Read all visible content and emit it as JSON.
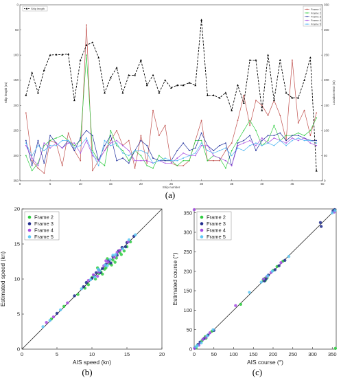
{
  "colors": {
    "ship_length": "#000000",
    "frame1": "#c0504d",
    "frame2": "#2ecc40",
    "frame3": "#1f2e9c",
    "frame4": "#a64ce0",
    "frame5": "#4fb6f2",
    "frame2_dots": "#2ecc40",
    "frame3_dots": "#1e2a8c",
    "frame4_dots": "#a64ce0",
    "frame5_dots": "#5fc8f5"
  },
  "panel_labels": [
    "(a)",
    "(b)",
    "(c)"
  ],
  "chart_data": [
    {
      "type": "line",
      "xlabel": "Ship number",
      "ylabel": "Ship length (m)",
      "ylabel_right": "Location error (m)",
      "xlim": [
        0,
        50
      ],
      "ylim_left": [
        350,
        0
      ],
      "ylim_right": [
        0,
        350
      ],
      "xticks": [
        "0",
        "5",
        "10",
        "15",
        "20",
        "25",
        "30",
        "35",
        "40",
        "45",
        "50"
      ],
      "yticks_left": [
        "0",
        "50",
        "100",
        "150",
        "200",
        "250",
        "300",
        "350"
      ],
      "yticks_right": [
        "0",
        "50",
        "100",
        "150",
        "200",
        "250",
        "300",
        "350"
      ],
      "legend_left": "Ship length",
      "legend_right": [
        "Frame 1",
        "Frame 2",
        "Frame 3",
        "Frame 4",
        "Frame 5"
      ],
      "x": [
        1,
        2,
        3,
        4,
        5,
        6,
        7,
        8,
        9,
        10,
        11,
        12,
        13,
        14,
        15,
        16,
        17,
        18,
        19,
        20,
        21,
        22,
        23,
        24,
        25,
        26,
        27,
        28,
        29,
        30,
        31,
        32,
        33,
        34,
        35,
        36,
        37,
        38,
        39,
        40,
        41,
        42,
        43,
        44,
        45,
        46,
        47,
        48,
        49
      ],
      "series": [
        {
          "name": "Ship length",
          "axis": "left",
          "values": [
            180,
            135,
            175,
            130,
            100,
            99,
            99,
            98,
            190,
            110,
            80,
            75,
            105,
            175,
            145,
            125,
            175,
            140,
            140,
            110,
            160,
            140,
            175,
            150,
            165,
            160,
            160,
            155,
            160,
            30,
            180,
            180,
            185,
            175,
            210,
            160,
            195,
            110,
            110,
            210,
            100,
            190,
            110,
            175,
            185,
            185,
            150,
            105,
            330
          ]
        },
        {
          "name": "Frame 1",
          "axis": "right",
          "values": [
            135,
            40,
            25,
            15,
            80,
            75,
            30,
            95,
            60,
            40,
            310,
            20,
            40,
            60,
            80,
            100,
            70,
            80,
            25,
            90,
            35,
            140,
            90,
            110,
            35,
            30,
            30,
            40,
            80,
            120,
            40,
            40,
            40,
            60,
            75,
            120,
            170,
            110,
            160,
            150,
            130,
            160,
            130,
            80,
            240,
            115,
            140,
            90,
            135
          ]
        },
        {
          "name": "Frame 2",
          "axis": "right",
          "values": [
            50,
            20,
            35,
            70,
            80,
            85,
            90,
            80,
            70,
            80,
            250,
            60,
            40,
            30,
            100,
            70,
            60,
            40,
            60,
            50,
            30,
            25,
            50,
            40,
            40,
            30,
            40,
            40,
            80,
            80,
            40,
            50,
            45,
            25,
            60,
            80,
            100,
            120,
            100,
            70,
            80,
            110,
            80,
            90,
            90,
            95,
            90,
            100,
            125
          ]
        },
        {
          "name": "Frame 3",
          "axis": "right",
          "values": [
            80,
            30,
            80,
            35,
            90,
            75,
            65,
            80,
            60,
            85,
            100,
            90,
            40,
            70,
            90,
            40,
            45,
            35,
            60,
            80,
            70,
            45,
            40,
            40,
            40,
            60,
            75,
            60,
            65,
            95,
            70,
            60,
            70,
            75,
            30,
            75,
            80,
            90,
            60,
            80,
            90,
            90,
            95,
            80,
            90,
            90,
            85,
            80,
            80
          ]
        },
        {
          "name": "Frame 4",
          "axis": "right",
          "values": [
            70,
            45,
            30,
            75,
            65,
            75,
            65,
            75,
            75,
            55,
            80,
            50,
            40,
            60,
            75,
            80,
            70,
            60,
            40,
            40,
            40,
            35,
            40,
            35,
            35,
            45,
            55,
            50,
            50,
            70,
            70,
            50,
            45,
            40,
            30,
            70,
            75,
            80,
            70,
            85,
            75,
            85,
            80,
            75,
            85,
            80,
            85,
            75,
            70
          ]
        },
        {
          "name": "Frame 5",
          "axis": "right",
          "values": [
            75,
            50,
            70,
            60,
            70,
            70,
            80,
            80,
            65,
            70,
            85,
            55,
            30,
            80,
            70,
            75,
            55,
            50,
            60,
            60,
            55,
            35,
            40,
            45,
            40,
            40,
            45,
            50,
            55,
            75,
            60,
            55,
            60,
            65,
            50,
            65,
            60,
            70,
            75,
            70,
            75,
            70,
            80,
            70,
            80,
            85,
            80,
            80,
            75
          ]
        }
      ]
    },
    {
      "type": "scatter",
      "xlabel": "AIS speed (kn)",
      "ylabel": "Estimated speed (kn)",
      "xlim": [
        0,
        20
      ],
      "ylim": [
        0,
        20
      ],
      "xticks": [
        "0",
        "5",
        "10",
        "15",
        "20"
      ],
      "yticks": [
        "0",
        "5",
        "10",
        "15",
        "20"
      ],
      "legend": [
        "Frame 2",
        "Frame 3",
        "Frame 4",
        "Frame 5"
      ],
      "legend_position": "top-left",
      "reference_line": "y = x",
      "series": [
        {
          "name": "Frame 2",
          "points": [
            [
              4.2,
              4.3
            ],
            [
              6.0,
              6.1
            ],
            [
              8.0,
              7.8
            ],
            [
              9.0,
              8.7
            ],
            [
              10.0,
              10.2
            ],
            [
              10.5,
              10.0
            ],
            [
              11.0,
              10.8
            ],
            [
              11.3,
              11.0
            ],
            [
              11.8,
              11.4
            ],
            [
              12.0,
              11.6
            ],
            [
              12.5,
              12.2
            ],
            [
              12.8,
              12.0
            ],
            [
              13.0,
              12.7
            ],
            [
              13.5,
              13.0
            ],
            [
              14.0,
              13.8
            ],
            [
              14.2,
              13.5
            ],
            [
              15.0,
              14.6
            ],
            [
              15.5,
              15.3
            ],
            [
              10.8,
              11.6
            ],
            [
              12.2,
              12.9
            ],
            [
              13.3,
              12.4
            ],
            [
              9.5,
              9.2
            ],
            [
              11.5,
              10.7
            ],
            [
              14.6,
              14.0
            ]
          ]
        },
        {
          "name": "Frame 3",
          "points": [
            [
              5.0,
              5.1
            ],
            [
              7.5,
              7.6
            ],
            [
              8.8,
              8.9
            ],
            [
              10.0,
              10.1
            ],
            [
              10.6,
              10.9
            ],
            [
              11.0,
              11.3
            ],
            [
              11.5,
              11.5
            ],
            [
              12.0,
              12.1
            ],
            [
              12.4,
              12.6
            ],
            [
              13.0,
              13.2
            ],
            [
              13.6,
              13.4
            ],
            [
              14.3,
              14.5
            ],
            [
              15.0,
              15.2
            ],
            [
              16.0,
              16.1
            ],
            [
              11.2,
              10.9
            ],
            [
              12.7,
              12.3
            ],
            [
              9.2,
              9.5
            ],
            [
              10.3,
              10.5
            ],
            [
              13.8,
              14.0
            ],
            [
              14.8,
              14.6
            ]
          ]
        },
        {
          "name": "Frame 4",
          "points": [
            [
              3.5,
              3.8
            ],
            [
              4.5,
              4.6
            ],
            [
              6.5,
              6.6
            ],
            [
              9.5,
              9.8
            ],
            [
              10.2,
              10.6
            ],
            [
              11.0,
              11.0
            ],
            [
              11.7,
              11.9
            ],
            [
              12.3,
              12.4
            ],
            [
              13.2,
              13.1
            ],
            [
              14.0,
              14.1
            ],
            [
              15.2,
              15.3
            ],
            [
              10.8,
              10.4
            ],
            [
              12.0,
              12.6
            ],
            [
              13.6,
              13.8
            ]
          ]
        },
        {
          "name": "Frame 5",
          "points": [
            [
              3.0,
              3.2
            ],
            [
              4.0,
              4.1
            ],
            [
              5.5,
              5.6
            ],
            [
              8.5,
              8.6
            ],
            [
              9.8,
              9.9
            ],
            [
              10.4,
              10.3
            ],
            [
              11.1,
              11.2
            ],
            [
              11.9,
              12.0
            ],
            [
              12.6,
              12.8
            ],
            [
              13.4,
              13.5
            ],
            [
              14.4,
              14.3
            ],
            [
              15.3,
              15.6
            ],
            [
              16.2,
              16.3
            ],
            [
              10.9,
              11.4
            ],
            [
              12.2,
              11.9
            ],
            [
              13.0,
              13.4
            ]
          ]
        }
      ]
    },
    {
      "type": "scatter",
      "xlabel": "AIS course (°)",
      "ylabel": "Estimated course (°)",
      "xlim": [
        0,
        360
      ],
      "ylim": [
        0,
        360
      ],
      "xticks": [
        "0",
        "50",
        "100",
        "150",
        "200",
        "250",
        "300",
        "350"
      ],
      "yticks": [
        "0",
        "50",
        "100",
        "150",
        "200",
        "250",
        "300",
        "350"
      ],
      "legend": [
        "Frame 2",
        "Frame 3",
        "Frame 4",
        "Frame 5"
      ],
      "legend_position": "top-left",
      "reference_line": "y = x",
      "series": [
        {
          "name": "Frame 2",
          "points": [
            [
              3,
              5
            ],
            [
              8,
              10
            ],
            [
              20,
              22
            ],
            [
              30,
              28
            ],
            [
              45,
              46
            ],
            [
              118,
              115
            ],
            [
              175,
              178
            ],
            [
              180,
              182
            ],
            [
              185,
              183
            ],
            [
              200,
              202
            ],
            [
              210,
              212
            ],
            [
              225,
              226
            ],
            [
              355,
              357
            ],
            [
              358,
              2
            ],
            [
              5,
              3
            ],
            [
              180,
              176
            ],
            [
              28,
              32
            ]
          ]
        },
        {
          "name": "Frame 3",
          "points": [
            [
              2,
              3
            ],
            [
              10,
              12
            ],
            [
              25,
              27
            ],
            [
              35,
              36
            ],
            [
              50,
              48
            ],
            [
              178,
              175
            ],
            [
              182,
              180
            ],
            [
              188,
              190
            ],
            [
              205,
              204
            ],
            [
              215,
              214
            ],
            [
              230,
              228
            ],
            [
              320,
              325
            ],
            [
              322,
              315
            ],
            [
              352,
              355
            ],
            [
              356,
              358
            ],
            [
              15,
              18
            ]
          ]
        },
        {
          "name": "Frame 4",
          "points": [
            [
              1,
              2
            ],
            [
              12,
              10
            ],
            [
              22,
              25
            ],
            [
              40,
              42
            ],
            [
              105,
              112
            ],
            [
              176,
              180
            ],
            [
              184,
              186
            ],
            [
              195,
              197
            ],
            [
              220,
              222
            ],
            [
              355,
              352
            ],
            [
              0,
              358
            ],
            [
              30,
              30
            ]
          ]
        },
        {
          "name": "Frame 5",
          "points": [
            [
              4,
              6
            ],
            [
              18,
              16
            ],
            [
              33,
              34
            ],
            [
              48,
              50
            ],
            [
              140,
              146
            ],
            [
              170,
              172
            ],
            [
              186,
              188
            ],
            [
              198,
              200
            ],
            [
              240,
              238
            ],
            [
              350,
              350
            ],
            [
              357,
              356
            ],
            [
              8,
              9
            ]
          ]
        }
      ]
    }
  ]
}
